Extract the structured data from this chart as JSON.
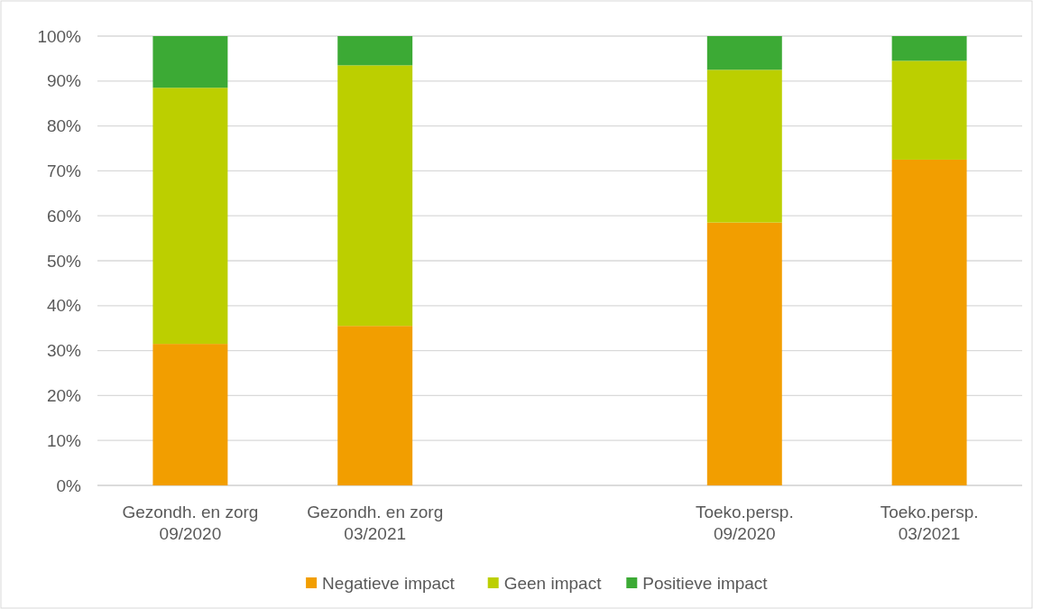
{
  "chart_data": {
    "type": "bar",
    "stacked": true,
    "categories": [
      "Gezondh. en zorg 09/2020",
      "Gezondh. en zorg 03/2021",
      null,
      "Toeko.persp. 09/2020",
      "Toeko.persp. 03/2021"
    ],
    "series": [
      {
        "name": "Negatieve impact",
        "color": "#f29e00",
        "values": [
          31.5,
          35.5,
          null,
          58.5,
          72.5
        ]
      },
      {
        "name": "Geen impact",
        "color": "#bccf00",
        "values": [
          57,
          58,
          null,
          34,
          22
        ]
      },
      {
        "name": "Positieve impact",
        "color": "#3caa35",
        "values": [
          11.5,
          6.5,
          null,
          7.5,
          5.5
        ]
      }
    ],
    "ylim": [
      0,
      100
    ],
    "yticks": [
      {
        "value": 0,
        "label": "0%"
      },
      {
        "value": 10,
        "label": "10%"
      },
      {
        "value": 20,
        "label": "20%"
      },
      {
        "value": 30,
        "label": "30%"
      },
      {
        "value": 40,
        "label": "40%"
      },
      {
        "value": 50,
        "label": "50%"
      },
      {
        "value": 60,
        "label": "60%"
      },
      {
        "value": 70,
        "label": "70%"
      },
      {
        "value": 80,
        "label": "80%"
      },
      {
        "value": 90,
        "label": "90%"
      },
      {
        "value": 100,
        "label": "100%"
      }
    ],
    "grid": "y",
    "legend": "bottom"
  }
}
